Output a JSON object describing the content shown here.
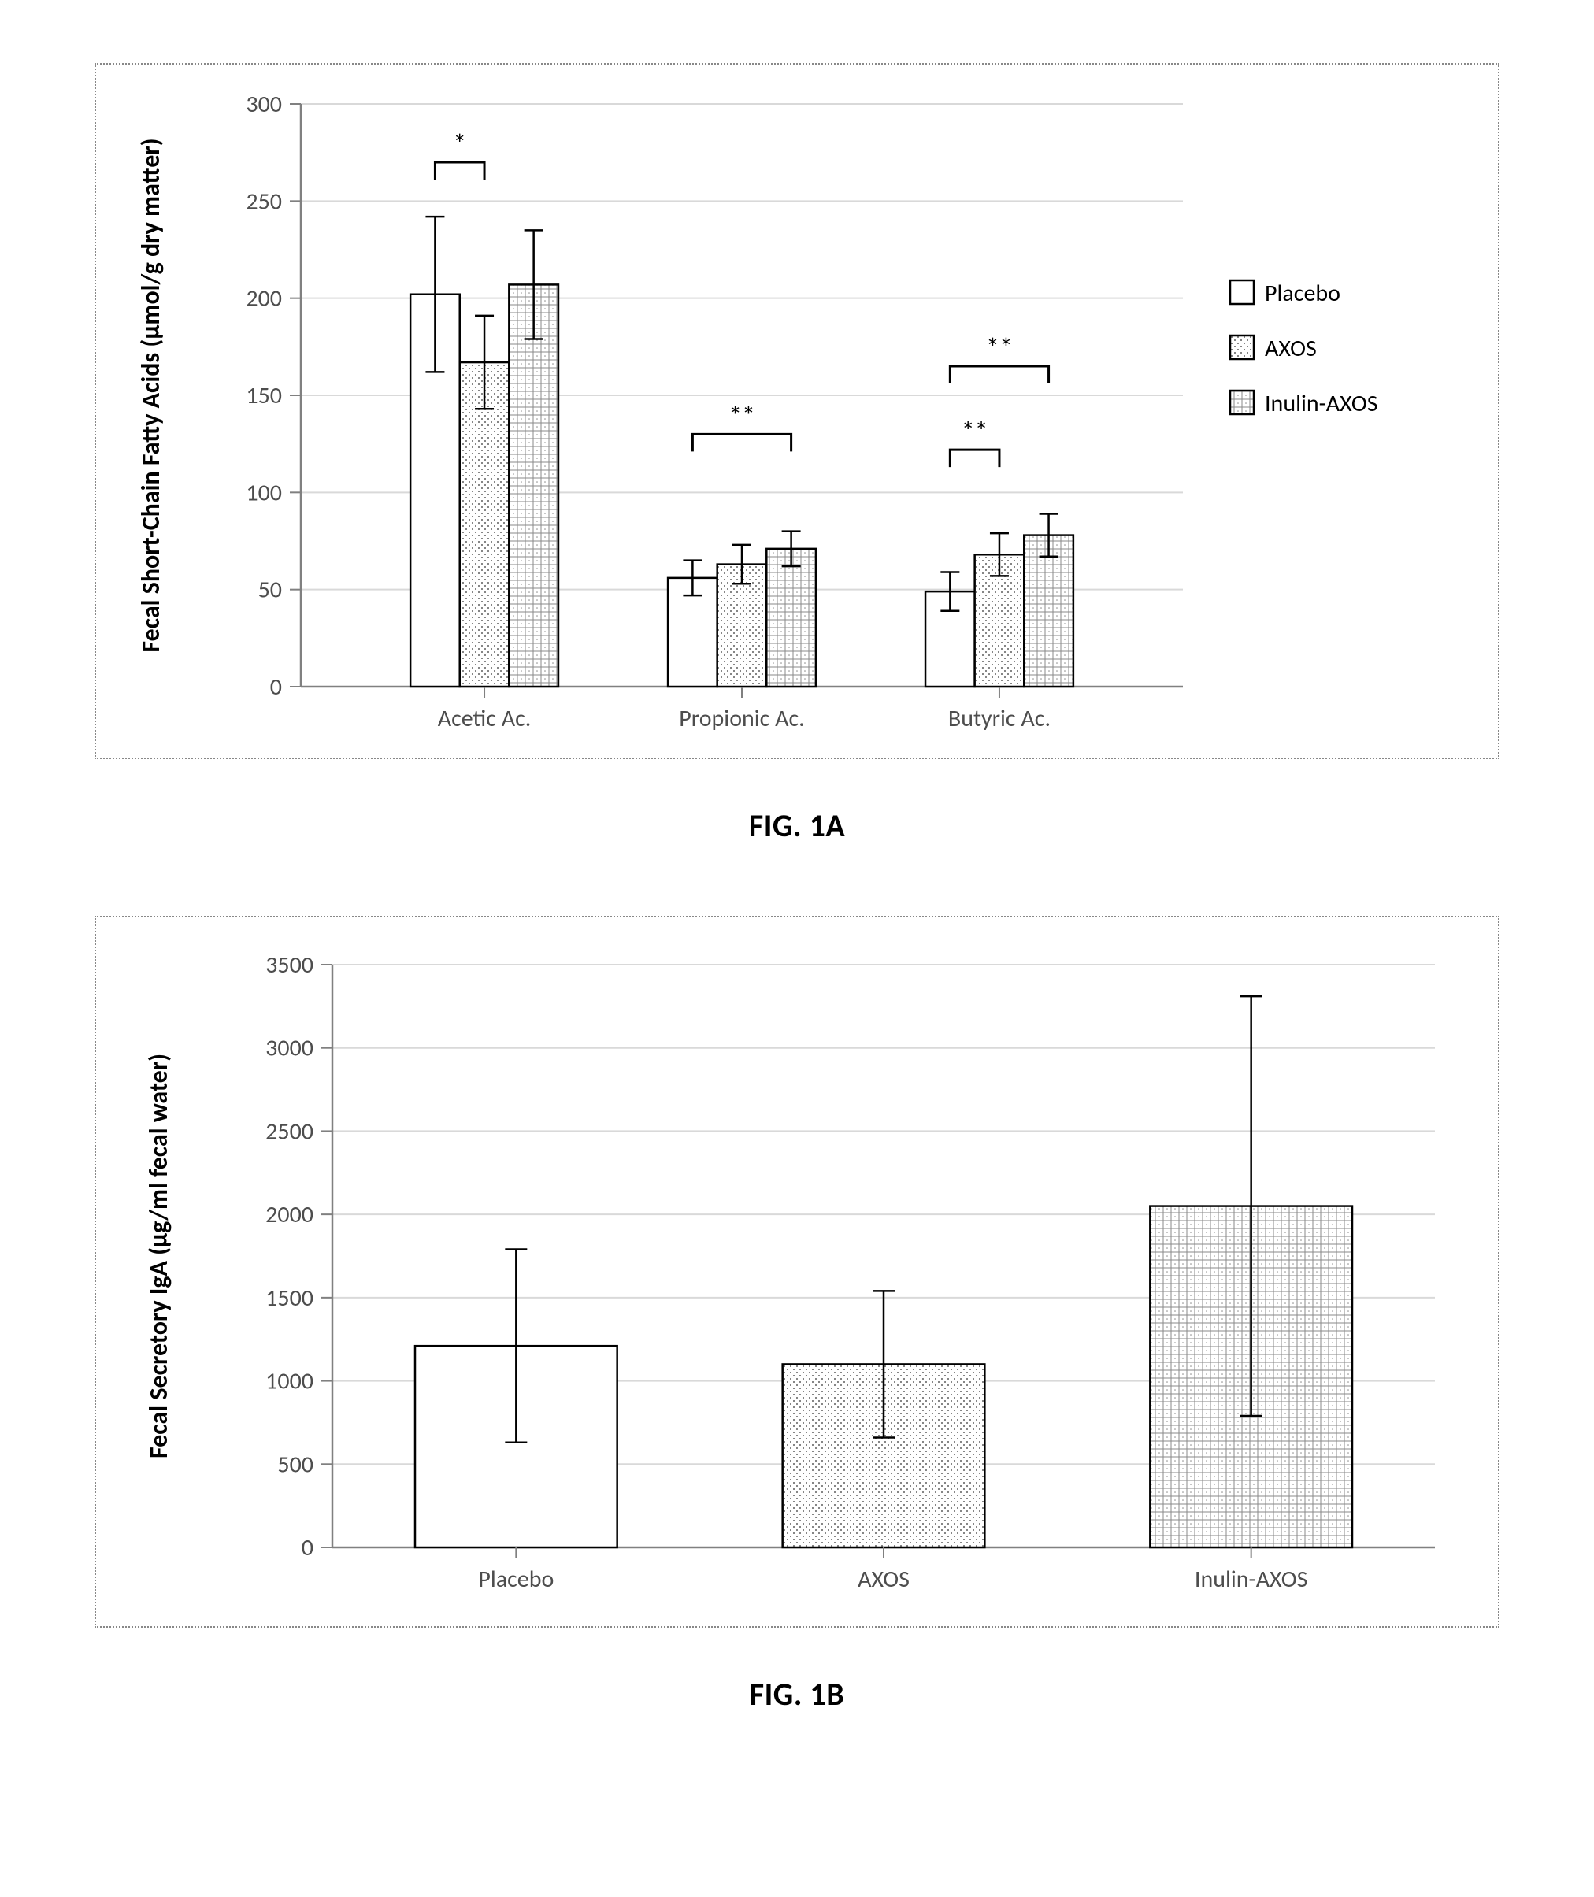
{
  "captions": {
    "fig1a": "FIG. 1A",
    "fig1b": "FIG. 1B"
  },
  "legend": {
    "items": [
      "Placebo",
      "AXOS",
      "Inulin-AXOS"
    ]
  },
  "series_style": {
    "placebo": {
      "fill": "#ffffff",
      "pattern": "none",
      "stroke": "#000000"
    },
    "axos": {
      "fill": "#ffffff",
      "pattern": "dots",
      "stroke": "#000000"
    },
    "inulinaxos": {
      "fill": "#ffffff",
      "pattern": "hatch",
      "stroke": "#000000"
    }
  },
  "colors": {
    "axis": "#808080",
    "grid": "#d9d9d9",
    "border_dotted": "#888888",
    "tick_label": "#4d4d4d",
    "text": "#000000",
    "background": "#ffffff"
  },
  "chartA": {
    "type": "bar",
    "ylabel": "Fecal Short-Chain Fatty Acids (µmol/g dry matter)",
    "ylabel_fontsize": 32,
    "tick_fontsize": 30,
    "category_fontsize": 30,
    "ylim": [
      0,
      300
    ],
    "ytick_step": 50,
    "categories": [
      "Acetic Ac.",
      "Propionic Ac.",
      "Butyric Ac."
    ],
    "series": [
      {
        "name": "Placebo",
        "style": "placebo",
        "values": [
          202,
          56,
          49
        ],
        "err": [
          40,
          9,
          10
        ]
      },
      {
        "name": "AXOS",
        "style": "axos",
        "values": [
          167,
          63,
          68
        ],
        "err": [
          24,
          10,
          11
        ]
      },
      {
        "name": "Inulin-AXOS",
        "style": "inulinaxos",
        "values": [
          207,
          71,
          78
        ],
        "err": [
          28,
          9,
          11
        ]
      }
    ],
    "sig": [
      {
        "category": 0,
        "from": 0,
        "to": 1,
        "label": "*",
        "y": 270
      },
      {
        "category": 1,
        "from": 0,
        "to": 2,
        "label": "**",
        "y": 130
      },
      {
        "category": 2,
        "from": 0,
        "to": 1,
        "label": "**",
        "y": 122
      },
      {
        "category": 2,
        "from": 0,
        "to": 2,
        "label": "**",
        "y": 165
      }
    ],
    "bar_width": 0.72,
    "group_gap": 1.6,
    "legend_position": "right"
  },
  "chartB": {
    "type": "bar",
    "ylabel": "Fecal Secretory IgA (µg/ml fecal water)",
    "ylabel_fontsize": 32,
    "tick_fontsize": 30,
    "category_fontsize": 30,
    "ylim": [
      0,
      3500
    ],
    "ytick_step": 500,
    "categories": [
      "Placebo",
      "AXOS",
      "Inulin-AXOS"
    ],
    "series": [
      {
        "name": "Placebo",
        "style": "placebo",
        "values": [
          1210
        ],
        "err": [
          580
        ]
      },
      {
        "name": "AXOS",
        "style": "axos",
        "values": [
          1100
        ],
        "err": [
          440
        ]
      },
      {
        "name": "Inulin-AXOS",
        "style": "inulinaxos",
        "values": [
          2050
        ],
        "err": [
          1260
        ]
      }
    ],
    "bar_width": 0.55
  }
}
